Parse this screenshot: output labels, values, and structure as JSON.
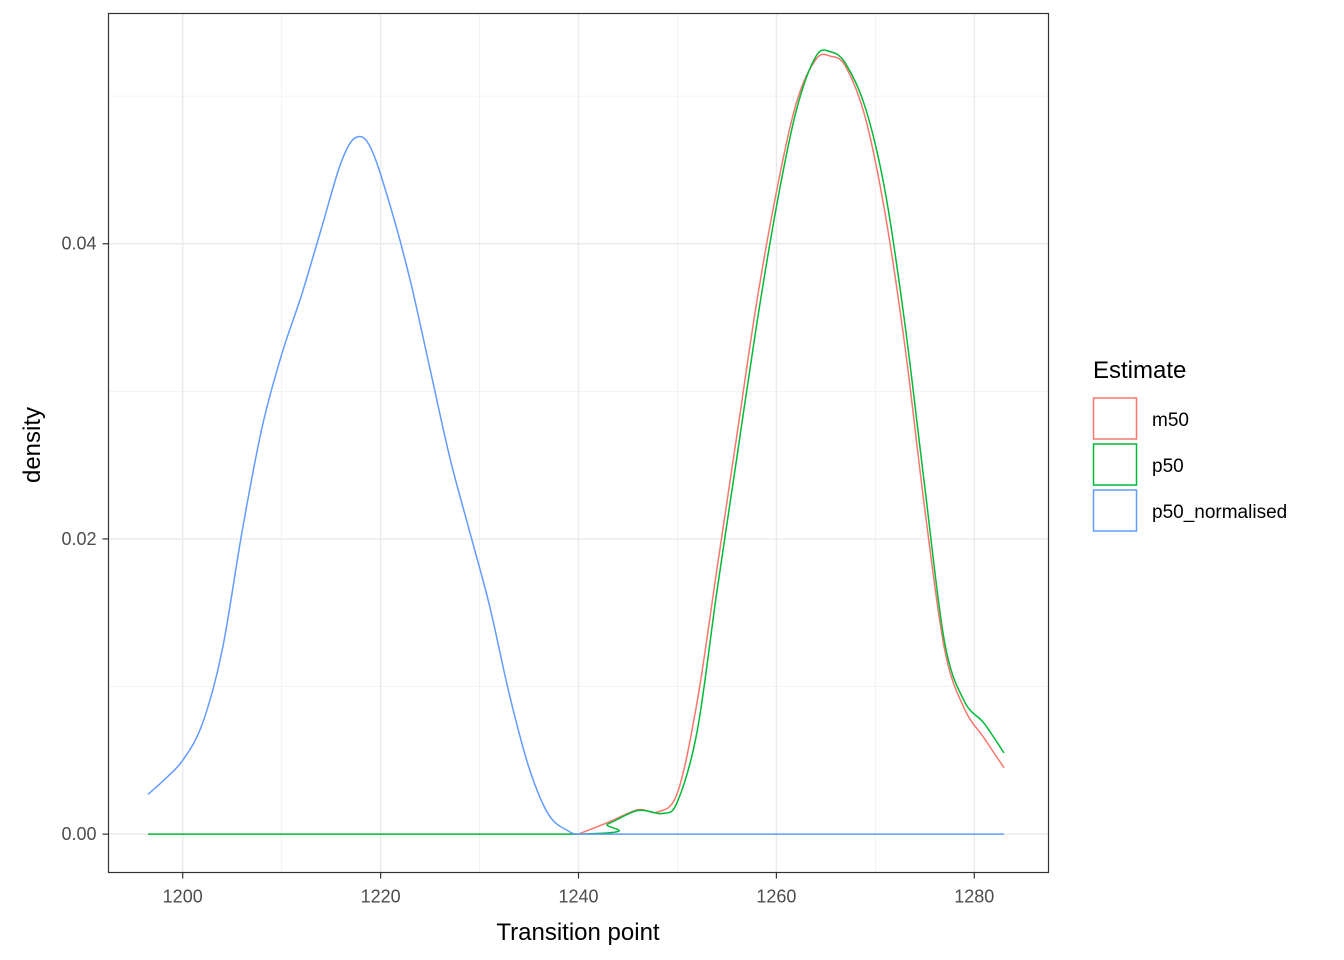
{
  "chart_data": {
    "type": "line",
    "title": "",
    "xlabel": "Transition point",
    "ylabel": "density",
    "xlim": [
      1192.5,
      1287.5
    ],
    "ylim": [
      -0.0026,
      0.0556
    ],
    "x_ticks": [
      1200,
      1220,
      1240,
      1260,
      1280
    ],
    "x_tick_labels": [
      "1200",
      "1220",
      "1240",
      "1260",
      "1280"
    ],
    "y_ticks": [
      0.0,
      0.02,
      0.04
    ],
    "y_tick_labels": [
      "0.00",
      "0.02",
      "0.04"
    ],
    "grid": true,
    "legend": {
      "title": "Estimate",
      "position": "right"
    },
    "series": [
      {
        "name": "m50",
        "color": "#F8766D",
        "x": [
          1240,
          1243,
          1246,
          1248,
          1250,
          1252,
          1254,
          1256,
          1258,
          1260,
          1262,
          1264,
          1265.5,
          1267,
          1269,
          1271,
          1273,
          1275,
          1277,
          1279,
          1281,
          1283
        ],
        "y": [
          0.0,
          0.0008,
          0.00165,
          0.0015,
          0.0028,
          0.009,
          0.018,
          0.027,
          0.036,
          0.0435,
          0.0495,
          0.0525,
          0.0527,
          0.052,
          0.0485,
          0.042,
          0.033,
          0.022,
          0.0125,
          0.0085,
          0.0065,
          0.0045
        ]
      },
      {
        "name": "p50",
        "color": "#00BA38",
        "x": [
          1196.5,
          1240,
          1243,
          1246,
          1248.5,
          1250,
          1252,
          1254,
          1256,
          1258,
          1260,
          1262,
          1264,
          1265.5,
          1267,
          1269,
          1271,
          1273,
          1275,
          1277,
          1279,
          1281,
          1283
        ],
        "y": [
          0.0,
          0.0,
          0.0007,
          0.0016,
          0.0014,
          0.0022,
          0.007,
          0.0165,
          0.0255,
          0.0345,
          0.0425,
          0.049,
          0.0527,
          0.053,
          0.0522,
          0.0492,
          0.0435,
          0.0345,
          0.0235,
          0.013,
          0.009,
          0.0075,
          0.0055
        ]
      },
      {
        "name": "p50_normalised",
        "color": "#619CFF",
        "x": [
          1196.5,
          1198,
          1200,
          1202,
          1204,
          1206,
          1208,
          1210,
          1212,
          1214,
          1216,
          1217.5,
          1219,
          1221,
          1223,
          1225,
          1227,
          1229,
          1231,
          1233,
          1235,
          1237,
          1239,
          1240,
          1242,
          1246,
          1250,
          1260,
          1270,
          1283
        ],
        "y": [
          0.0027,
          0.0036,
          0.005,
          0.0075,
          0.0125,
          0.0205,
          0.0275,
          0.0325,
          0.0365,
          0.041,
          0.0455,
          0.0472,
          0.0465,
          0.0425,
          0.0375,
          0.0315,
          0.0255,
          0.0205,
          0.0155,
          0.0095,
          0.0045,
          0.0013,
          0.0002,
          0.0,
          0.0,
          0.0,
          0.0,
          0.0,
          0.0,
          0.0
        ]
      }
    ]
  }
}
